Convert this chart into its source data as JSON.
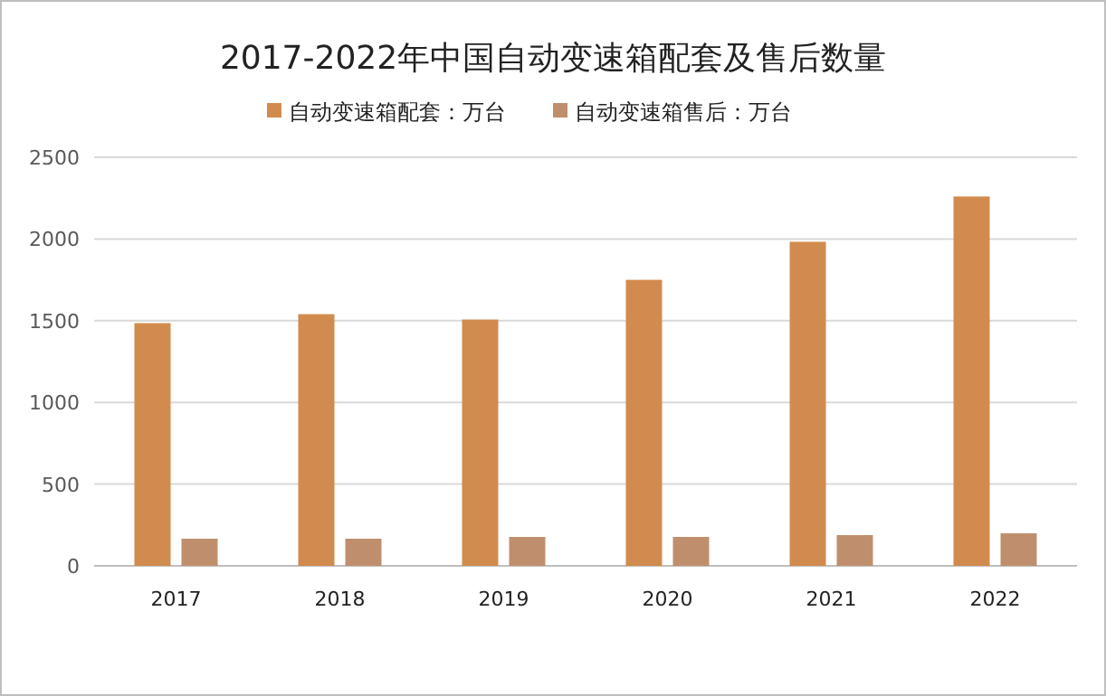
{
  "chart_data": {
    "type": "bar",
    "title": "2017-2022年中国自动变速箱配套及售后数量",
    "categories": [
      "2017",
      "2018",
      "2019",
      "2020",
      "2021",
      "2022"
    ],
    "series": [
      {
        "name": "自动变速箱配套：万台",
        "color": "#d28b4e",
        "values": [
          1485,
          1540,
          1507,
          1750,
          1983,
          2260
        ]
      },
      {
        "name": "自动变速箱售后：万台",
        "color": "#bf8f6d",
        "values": [
          166,
          166,
          177,
          177,
          188,
          199
        ]
      }
    ],
    "ylim": [
      0,
      2500
    ],
    "yticks": [
      0,
      500,
      1000,
      1500,
      2000,
      2500
    ],
    "grid": "y",
    "legend": "top"
  }
}
